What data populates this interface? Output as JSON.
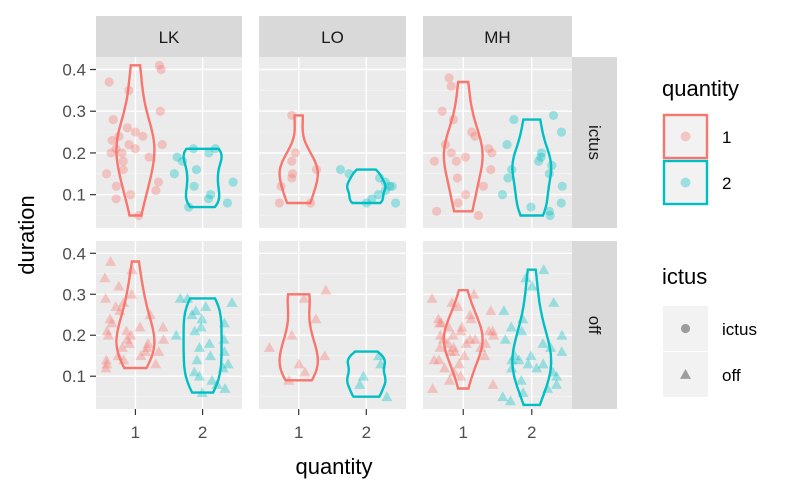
{
  "chart_data": {
    "type": "violin",
    "xlabel": "quantity",
    "ylabel": "duration",
    "ylim": [
      0.02,
      0.43
    ],
    "y_ticks": [
      "0.1",
      "0.2",
      "0.3",
      "0.4"
    ],
    "y_tick_values": [
      0.1,
      0.2,
      0.3,
      0.4
    ],
    "x_categories": [
      "1",
      "2"
    ],
    "facet_columns": [
      "LK",
      "LO",
      "MH"
    ],
    "facet_rows": [
      "ictus",
      "off"
    ],
    "legend_quantity": {
      "title": "quantity",
      "items": [
        {
          "label": "1",
          "color": "#F8766D"
        },
        {
          "label": "2",
          "color": "#00BFC4"
        }
      ]
    },
    "legend_ictus": {
      "title": "ictus",
      "items": [
        {
          "label": "ictus",
          "shape": "circle"
        },
        {
          "label": "off",
          "shape": "triangle"
        }
      ]
    },
    "colors": {
      "1": "#F8766D",
      "2": "#00BFC4"
    },
    "panels": [
      {
        "col": "LK",
        "row": "ictus",
        "groups": [
          {
            "quantity": "1",
            "min": 0.05,
            "max": 0.41,
            "points": [
              0.41,
              0.4,
              0.37,
              0.35,
              0.3,
              0.28,
              0.26,
              0.25,
              0.24,
              0.24,
              0.23,
              0.22,
              0.22,
              0.21,
              0.21,
              0.2,
              0.2,
              0.19,
              0.18,
              0.16,
              0.15,
              0.13,
              0.12,
              0.11,
              0.1,
              0.09,
              0.05
            ]
          },
          {
            "quantity": "2",
            "min": 0.07,
            "max": 0.21,
            "points": [
              0.21,
              0.21,
              0.2,
              0.19,
              0.18,
              0.16,
              0.15,
              0.13,
              0.12,
              0.1,
              0.09,
              0.08,
              0.07
            ]
          }
        ]
      },
      {
        "col": "LO",
        "row": "ictus",
        "groups": [
          {
            "quantity": "1",
            "min": 0.08,
            "max": 0.29,
            "points": [
              0.29,
              0.2,
              0.18,
              0.16,
              0.15,
              0.14,
              0.12,
              0.08,
              0.08
            ]
          },
          {
            "quantity": "2",
            "min": 0.08,
            "max": 0.16,
            "points": [
              0.16,
              0.15,
              0.14,
              0.13,
              0.12,
              0.12,
              0.11,
              0.1,
              0.09,
              0.08,
              0.08
            ]
          }
        ]
      },
      {
        "col": "MH",
        "row": "ictus",
        "groups": [
          {
            "quantity": "1",
            "min": 0.06,
            "max": 0.37,
            "points": [
              0.38,
              0.36,
              0.3,
              0.28,
              0.25,
              0.24,
              0.22,
              0.21,
              0.2,
              0.2,
              0.19,
              0.18,
              0.18,
              0.16,
              0.14,
              0.12,
              0.1,
              0.08,
              0.06,
              0.05
            ]
          },
          {
            "quantity": "2",
            "min": 0.05,
            "max": 0.28,
            "points": [
              0.29,
              0.28,
              0.25,
              0.22,
              0.2,
              0.19,
              0.18,
              0.17,
              0.16,
              0.15,
              0.14,
              0.12,
              0.1,
              0.08,
              0.07,
              0.06,
              0.05
            ]
          }
        ]
      },
      {
        "col": "LK",
        "row": "off",
        "groups": [
          {
            "quantity": "1",
            "min": 0.12,
            "max": 0.38,
            "points": [
              0.38,
              0.36,
              0.34,
              0.32,
              0.3,
              0.29,
              0.28,
              0.27,
              0.26,
              0.25,
              0.24,
              0.23,
              0.22,
              0.22,
              0.21,
              0.21,
              0.2,
              0.2,
              0.19,
              0.19,
              0.18,
              0.18,
              0.17,
              0.17,
              0.16,
              0.16,
              0.15,
              0.15,
              0.14,
              0.14,
              0.13,
              0.13,
              0.12
            ]
          },
          {
            "quantity": "2",
            "min": 0.06,
            "max": 0.29,
            "points": [
              0.29,
              0.29,
              0.28,
              0.27,
              0.26,
              0.25,
              0.24,
              0.23,
              0.22,
              0.21,
              0.2,
              0.19,
              0.18,
              0.17,
              0.16,
              0.15,
              0.14,
              0.13,
              0.12,
              0.11,
              0.1,
              0.09,
              0.08,
              0.07,
              0.06
            ]
          }
        ]
      },
      {
        "col": "LO",
        "row": "off",
        "groups": [
          {
            "quantity": "1",
            "min": 0.09,
            "max": 0.3,
            "points": [
              0.31,
              0.29,
              0.24,
              0.2,
              0.17,
              0.15,
              0.13,
              0.11,
              0.09
            ]
          },
          {
            "quantity": "2",
            "min": 0.05,
            "max": 0.16,
            "points": [
              0.15,
              0.13,
              0.1,
              0.08,
              0.05
            ]
          }
        ]
      },
      {
        "col": "MH",
        "row": "off",
        "groups": [
          {
            "quantity": "1",
            "min": 0.07,
            "max": 0.31,
            "points": [
              0.3,
              0.29,
              0.28,
              0.27,
              0.26,
              0.25,
              0.24,
              0.24,
              0.23,
              0.23,
              0.22,
              0.22,
              0.21,
              0.21,
              0.21,
              0.2,
              0.2,
              0.2,
              0.19,
              0.19,
              0.19,
              0.18,
              0.18,
              0.18,
              0.17,
              0.17,
              0.17,
              0.16,
              0.16,
              0.15,
              0.15,
              0.14,
              0.14,
              0.13,
              0.12,
              0.11,
              0.1,
              0.09,
              0.08,
              0.07
            ]
          },
          {
            "quantity": "2",
            "min": 0.03,
            "max": 0.36,
            "points": [
              0.36,
              0.34,
              0.32,
              0.28,
              0.26,
              0.24,
              0.22,
              0.21,
              0.2,
              0.19,
              0.18,
              0.17,
              0.16,
              0.15,
              0.15,
              0.14,
              0.14,
              0.13,
              0.13,
              0.12,
              0.12,
              0.11,
              0.1,
              0.09,
              0.08,
              0.07,
              0.06,
              0.05,
              0.04
            ]
          }
        ]
      }
    ]
  }
}
